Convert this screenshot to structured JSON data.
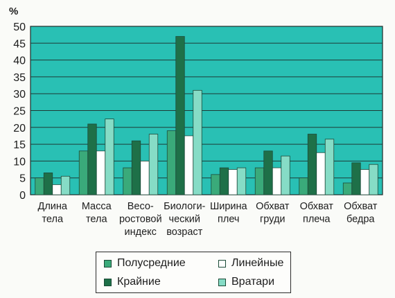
{
  "chart_data": {
    "type": "bar",
    "title": "",
    "xlabel": "",
    "ylabel": "%",
    "ylim": [
      0,
      50
    ],
    "yticks": [
      "0",
      "5",
      "10",
      "15",
      "20",
      "25",
      "30",
      "35",
      "40",
      "45",
      "50"
    ],
    "grid": true,
    "legend_position": "bottom",
    "categories": [
      [
        "Длина",
        "тела"
      ],
      [
        "Масса",
        "тела"
      ],
      [
        "Весо-",
        "ростовой",
        "индекс"
      ],
      [
        "Биологи-",
        "ческий",
        "возраст"
      ],
      [
        "Ширина",
        "плеч"
      ],
      [
        "Обхват",
        "груди"
      ],
      [
        "Обхват",
        "плеча"
      ],
      [
        "Обхват",
        "бедра"
      ]
    ],
    "series": [
      {
        "name": "Полусредние",
        "color": "#3aaa7a",
        "values": [
          5,
          13,
          8,
          19,
          6,
          8,
          5,
          3.5
        ]
      },
      {
        "name": "Крайние",
        "color": "#1e7048",
        "values": [
          6.5,
          21,
          16,
          47,
          8,
          13,
          18,
          9.5
        ]
      },
      {
        "name": "Линейные",
        "color": "#ffffff",
        "values": [
          3,
          13,
          10,
          17.5,
          7.5,
          8,
          12.5,
          7.5
        ]
      },
      {
        "name": "Вратари",
        "color": "#86dcc6",
        "values": [
          5.5,
          22.5,
          18,
          31,
          8,
          11.5,
          16.5,
          9
        ]
      }
    ],
    "plot_background": "#29c0b4",
    "grid_color": "#1f3a36"
  }
}
